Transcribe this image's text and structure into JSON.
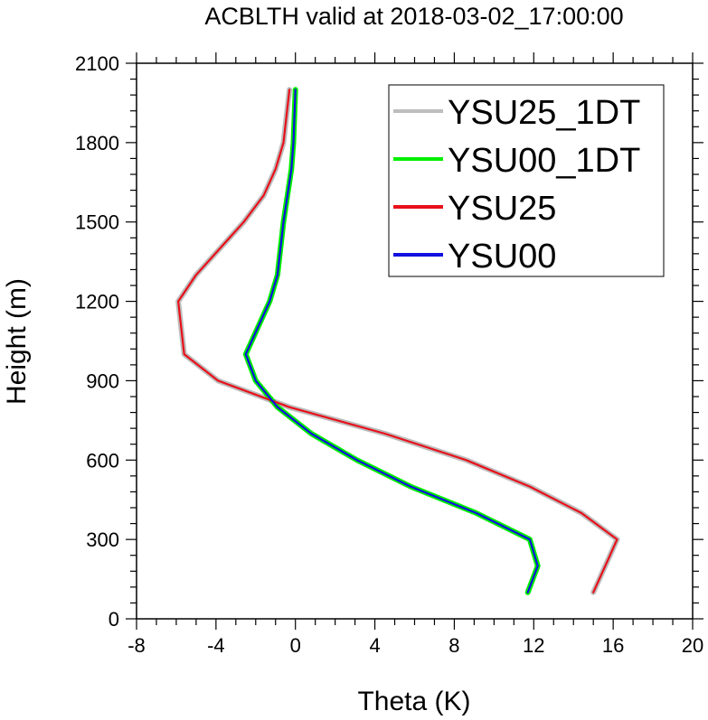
{
  "chart_data": {
    "type": "line",
    "title": "ACBLTH valid at 2018-03-02_17:00:00",
    "xlabel": "Theta (K)",
    "ylabel": "Height (m)",
    "xlim": [
      -8,
      20
    ],
    "ylim": [
      0,
      2100
    ],
    "xticks": [
      -8,
      -4,
      0,
      4,
      8,
      12,
      16,
      20
    ],
    "yticks": [
      0,
      300,
      600,
      900,
      1200,
      1500,
      1800,
      2100
    ],
    "grid": false,
    "legend_position": "top-right",
    "series": [
      {
        "name": "YSU25_1DT",
        "color": "#bdbdbd",
        "x": [
          15.0,
          15.6,
          16.2,
          14.4,
          11.8,
          8.6,
          4.5,
          -0.3,
          -3.9,
          -5.6,
          -5.9,
          -5.0,
          -2.6,
          -1.6,
          -1.0,
          -0.6,
          -0.3
        ],
        "y": [
          100,
          200,
          300,
          400,
          500,
          600,
          700,
          800,
          900,
          1000,
          1200,
          1300,
          1500,
          1600,
          1700,
          1800,
          2000
        ]
      },
      {
        "name": "YSU00_1DT",
        "color": "#00ee00",
        "x": [
          11.7,
          12.2,
          11.8,
          9.1,
          5.8,
          3.1,
          0.8,
          -0.9,
          -2.0,
          -2.5,
          -1.3,
          -0.9,
          -0.6,
          -0.4,
          -0.2,
          -0.1,
          0.0
        ],
        "y": [
          100,
          200,
          300,
          400,
          500,
          600,
          700,
          800,
          900,
          1000,
          1200,
          1300,
          1500,
          1600,
          1700,
          1800,
          2000
        ]
      },
      {
        "name": "YSU25",
        "color": "#e8101a",
        "x": [
          15.0,
          15.6,
          16.2,
          14.4,
          11.8,
          8.6,
          4.5,
          -0.3,
          -3.9,
          -5.6,
          -5.9,
          -5.0,
          -2.6,
          -1.6,
          -1.0,
          -0.6,
          -0.3
        ],
        "y": [
          100,
          200,
          300,
          400,
          500,
          600,
          700,
          800,
          900,
          1000,
          1200,
          1300,
          1500,
          1600,
          1700,
          1800,
          2000
        ]
      },
      {
        "name": "YSU00",
        "color": "#1010e0",
        "x": [
          11.7,
          12.2,
          11.8,
          9.1,
          5.8,
          3.1,
          0.8,
          -0.9,
          -2.0,
          -2.5,
          -1.3,
          -0.9,
          -0.6,
          -0.4,
          -0.2,
          -0.1,
          0.0
        ],
        "y": [
          100,
          200,
          300,
          400,
          500,
          600,
          700,
          800,
          900,
          1000,
          1200,
          1300,
          1500,
          1600,
          1700,
          1800,
          2000
        ]
      }
    ]
  }
}
